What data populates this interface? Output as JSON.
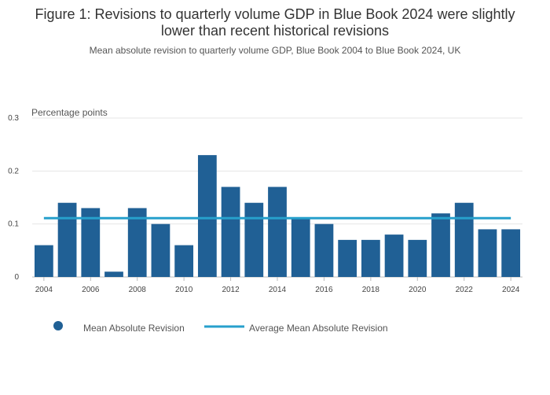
{
  "title": "Figure 1: Revisions to quarterly volume GDP in Blue Book 2024 were slightly lower than recent historical revisions",
  "subtitle": "Mean absolute revision to quarterly volume GDP, Blue Book 2004 to Blue Book 2024, UK",
  "colors": {
    "bar": "#206095",
    "line": "#27a0cc",
    "grid": "#e6e6e6",
    "axis": "#bbbbbb"
  },
  "chart_data": {
    "type": "bar",
    "title": "Figure 1: Revisions to quarterly volume GDP in Blue Book 2024 were slightly lower than recent historical revisions",
    "ylabel": "Percentage points",
    "xlabel": "",
    "ylim": [
      0,
      0.3
    ],
    "yticks": [
      "0",
      "0.1",
      "0.2",
      "0.3"
    ],
    "xticks": [
      "2004",
      "2006",
      "2008",
      "2010",
      "2012",
      "2014",
      "2016",
      "2018",
      "2020",
      "2022",
      "2024"
    ],
    "categories": [
      "2004",
      "2005",
      "2006",
      "2007",
      "2008",
      "2009",
      "2010",
      "2011",
      "2012",
      "2013",
      "2014",
      "2015",
      "2016",
      "2017",
      "2018",
      "2019",
      "2020",
      "2021",
      "2022",
      "2023",
      "2024"
    ],
    "series": [
      {
        "name": "Mean Absolute Revision",
        "type": "bar",
        "values": [
          0.06,
          0.14,
          0.13,
          0.01,
          0.13,
          0.1,
          0.06,
          0.23,
          0.17,
          0.14,
          0.17,
          0.11,
          0.1,
          0.07,
          0.07,
          0.08,
          0.07,
          0.12,
          0.14,
          0.09,
          0.09
        ]
      },
      {
        "name": "Average Mean Absolute Revision",
        "type": "line",
        "value": 0.111
      }
    ],
    "legend": "bottom-left"
  }
}
